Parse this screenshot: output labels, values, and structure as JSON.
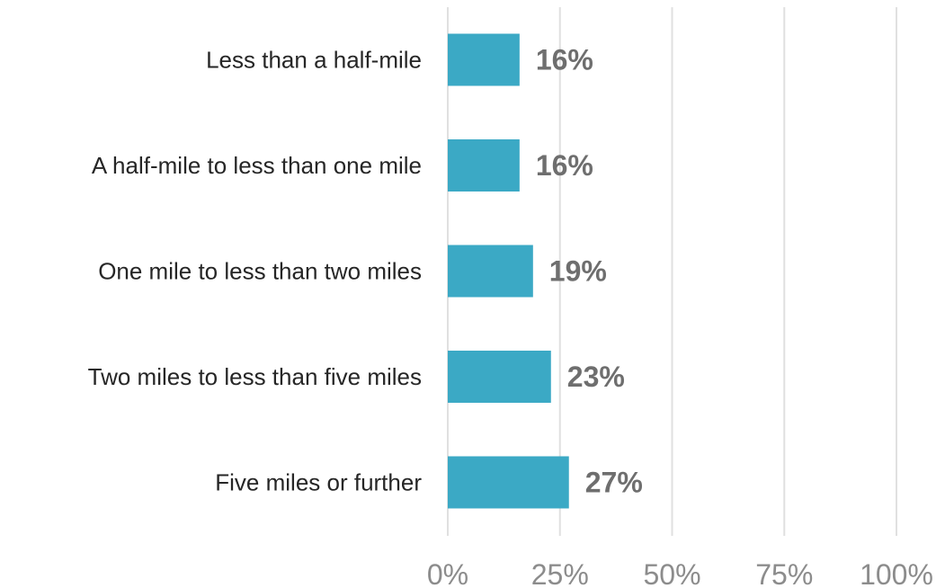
{
  "chart_data": {
    "type": "bar",
    "orientation": "horizontal",
    "categories": [
      "Less than a half-mile",
      "A half-mile to less than one mile",
      "One mile to less than two miles",
      "Two miles to less than five miles",
      "Five miles or further"
    ],
    "values": [
      16,
      16,
      19,
      23,
      27
    ],
    "value_labels": [
      "16%",
      "16%",
      "19%",
      "23%",
      "27%"
    ],
    "xlim": [
      0,
      100
    ],
    "x_ticks": [
      0,
      25,
      50,
      75,
      100
    ],
    "x_tick_labels": [
      "0%",
      "25%",
      "50%",
      "75%",
      "100%"
    ],
    "grid": "vertical",
    "bar_color": "#3ba9c5",
    "title": "",
    "xlabel": "",
    "ylabel": ""
  }
}
